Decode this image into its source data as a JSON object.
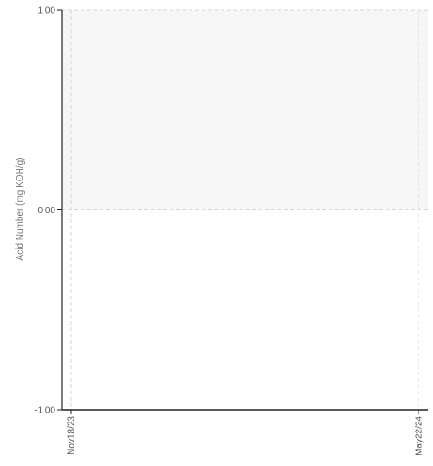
{
  "chart_data": {
    "type": "line",
    "title": "",
    "xlabel": "",
    "ylabel": "Acid Number (mg KOH/g)",
    "x_tick_labels": [
      "Nov18/23",
      "May22/24"
    ],
    "y_tick_labels": [
      "1.00",
      "0.00",
      "-1.00"
    ],
    "y_ticks": [
      1,
      0,
      -1
    ],
    "ylim": [
      -1,
      1
    ],
    "xlim": [
      "Nov18/23",
      "May22/24"
    ],
    "grid": true,
    "shaded_band": {
      "from": 0,
      "to": 1,
      "color": "#f6f6f6"
    },
    "series": []
  },
  "colors": {
    "axis": "#222222",
    "grid": "#d6d6d6",
    "band": "#f6f6f6",
    "tick_text": "#555555",
    "axis_title_text": "#777777"
  }
}
